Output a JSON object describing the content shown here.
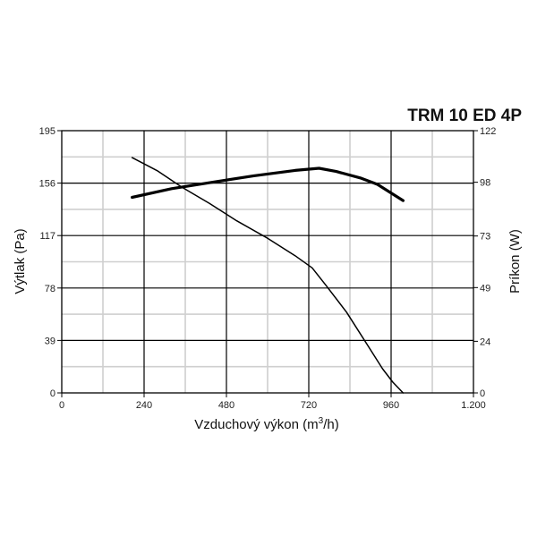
{
  "chart_data": {
    "type": "line",
    "title": "TRM 10 ED 4P",
    "xlabel": "Vzduchový výkon (m",
    "xlabel_sup": "3",
    "xlabel_suffix": "/h)",
    "ylabel": "Výtlak (Pa)",
    "y2label": "Príkon (W)",
    "xlim": [
      0,
      1200
    ],
    "ylim": [
      0,
      195
    ],
    "y2lim": [
      0,
      122
    ],
    "x_ticks": [
      "0",
      "240",
      "480",
      "720",
      "960",
      "1.200"
    ],
    "x_tick_values": [
      0,
      240,
      480,
      720,
      960,
      1200
    ],
    "y_ticks": [
      "0",
      "39",
      "78",
      "117",
      "156",
      "195"
    ],
    "y_tick_values": [
      0,
      39,
      78,
      117,
      156,
      195
    ],
    "y2_ticks": [
      "0",
      "24",
      "49",
      "73",
      "98",
      "122"
    ],
    "y2_tick_values": [
      0,
      24,
      49,
      73,
      98,
      122
    ],
    "minor_x_step": 120,
    "minor_y_step": 19.5,
    "grid": true,
    "series": [
      {
        "axis": "left",
        "weight": "thin",
        "x": [
          205,
          280,
          350,
          430,
          510,
          600,
          680,
          730,
          770,
          830,
          890,
          935,
          965,
          995
        ],
        "y": [
          175,
          165,
          153,
          141,
          128,
          115,
          102,
          93,
          80,
          60,
          36,
          18,
          8,
          0
        ]
      },
      {
        "axis": "right",
        "weight": "thick",
        "x": [
          205,
          320,
          440,
          560,
          680,
          750,
          800,
          870,
          920,
          995
        ],
        "y": [
          91,
          95,
          98,
          101,
          103.5,
          104.5,
          103,
          100,
          97,
          89.5
        ]
      }
    ]
  }
}
